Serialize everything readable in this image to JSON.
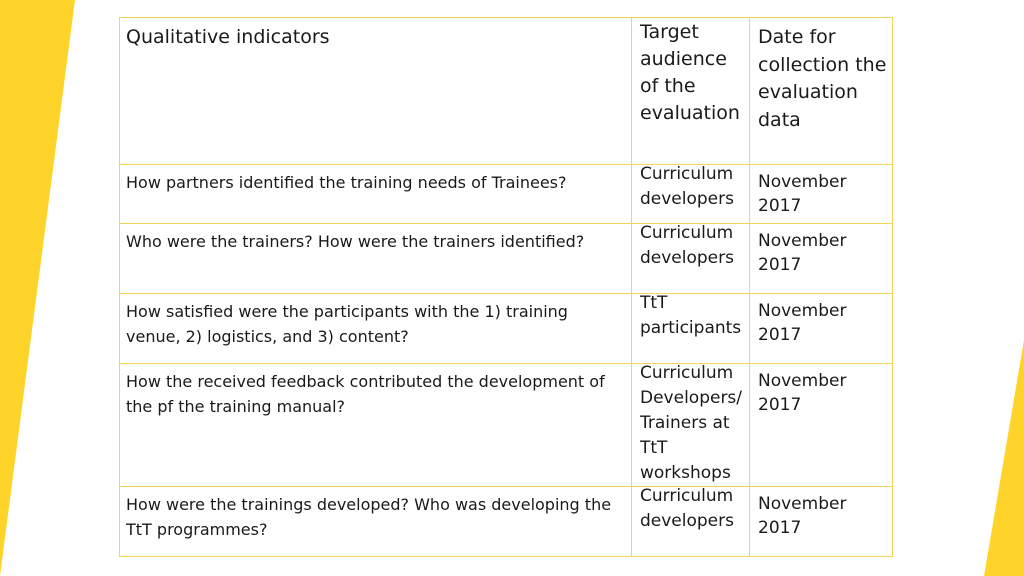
{
  "table": {
    "headers": [
      "Qualitative indicators",
      "Target audience of the evaluation",
      "Date for collection the evaluation data"
    ],
    "rows": [
      [
        "How partners identified the training needs of Trainees?",
        "Curriculum developers",
        "November 2017"
      ],
      [
        "Who were the trainers? How were the trainers identified?",
        "Curriculum developers",
        "November 2017"
      ],
      [
        "How satisfied were the participants with the 1) training venue, 2) logistics, and 3) content?",
        "TtT participants",
        "November 2017"
      ],
      [
        "How the received feedback contributed the development of the pf the training manual?",
        "Curriculum Developers/ Trainers at TtT workshops",
        "November 2017"
      ],
      [
        "How were the trainings developed? Who was developing the TtT programmes?",
        "Curriculum developers",
        "November 2017"
      ]
    ]
  },
  "colors": {
    "accent": "#FFD42A",
    "border": "#F6D45C"
  }
}
